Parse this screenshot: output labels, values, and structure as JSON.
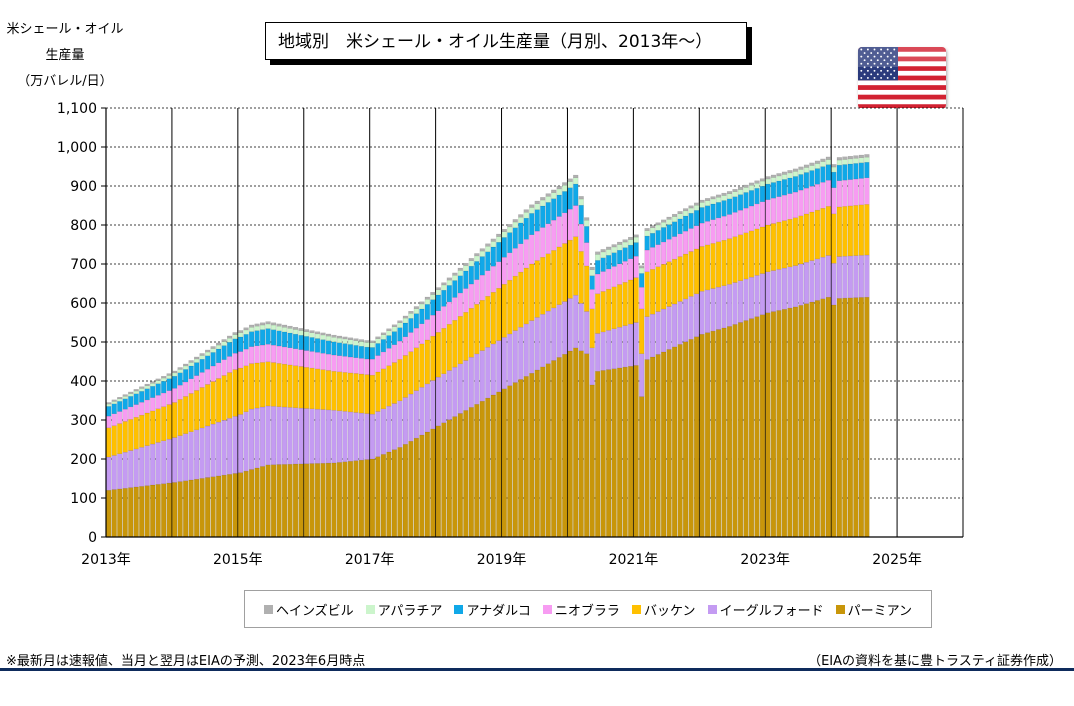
{
  "header": {
    "y_axis_title_lines": [
      "米シェール・オイル",
      "生産量",
      "（万バレル/日）"
    ],
    "title": "地域別　米シェール・オイル生産量（月別、2013年～）"
  },
  "footer": {
    "note_left": "※最新月は速報値、当月と翌月はEIAの予測、2023年6月時点",
    "note_right": "（EIAの資料を基に豊トラスティ証券作成）"
  },
  "colors": {
    "permian": "#C8960A",
    "eagle_ford": "#C49BF2",
    "bakken": "#FFC000",
    "niobrara": "#F79CF2",
    "anadarko": "#10A8E8",
    "appalachia": "#CCF5CC",
    "haynesville": "#B0B0B0",
    "grid": "#000000",
    "rule": "#0E2B5C"
  },
  "icons": {
    "flag": "us-flag-icon"
  },
  "chart_data": {
    "type": "bar",
    "stacked": true,
    "frequency": "monthly",
    "x_start": "2013-01",
    "x_end": "2025-12",
    "ylim": [
      0,
      1100
    ],
    "yticks": [
      0,
      100,
      200,
      300,
      400,
      500,
      600,
      700,
      800,
      900,
      1000,
      1100
    ],
    "ytick_labels": [
      "0",
      "100",
      "200",
      "300",
      "400",
      "500",
      "600",
      "700",
      "800",
      "900",
      "1,000",
      "1,100"
    ],
    "xtick_labels": [
      "2013年",
      "2015年",
      "2017年",
      "2019年",
      "2021年",
      "2023年",
      "2025年"
    ],
    "xtick_years": [
      2013,
      2015,
      2017,
      2019,
      2021,
      2023,
      2025
    ],
    "grid": true,
    "legend_position": "bottom",
    "keyframes_note": "values per series, read at year/month anchors; months between anchors are linearly interpolated",
    "series": [
      {
        "name": "パーミアン",
        "color_key": "permian",
        "anchors": [
          [
            "2013-01",
            120
          ],
          [
            "2014-01",
            140
          ],
          [
            "2015-01",
            165
          ],
          [
            "2015-06",
            185
          ],
          [
            "2016-06",
            190
          ],
          [
            "2017-01",
            200
          ],
          [
            "2017-06",
            230
          ],
          [
            "2018-01",
            285
          ],
          [
            "2019-01",
            380
          ],
          [
            "2019-06",
            420
          ],
          [
            "2020-02",
            485
          ],
          [
            "2020-04",
            470
          ],
          [
            "2020-05",
            390
          ],
          [
            "2020-06",
            425
          ],
          [
            "2021-01",
            440
          ],
          [
            "2021-02",
            360
          ],
          [
            "2021-03",
            455
          ],
          [
            "2022-01",
            520
          ],
          [
            "2022-06",
            540
          ],
          [
            "2023-01",
            575
          ],
          [
            "2023-06",
            590
          ],
          [
            "2023-12",
            615
          ],
          [
            "2024-01",
            595
          ],
          [
            "2024-02",
            612
          ],
          [
            "2024-07",
            615
          ]
        ]
      },
      {
        "name": "イーグルフォード",
        "color_key": "eagle_ford",
        "anchors": [
          [
            "2013-01",
            85
          ],
          [
            "2014-01",
            115
          ],
          [
            "2015-03",
            155
          ],
          [
            "2016-06",
            135
          ],
          [
            "2017-01",
            115
          ],
          [
            "2018-01",
            125
          ],
          [
            "2019-06",
            135
          ],
          [
            "2020-02",
            135
          ],
          [
            "2020-05",
            95
          ],
          [
            "2021-01",
            110
          ],
          [
            "2022-01",
            110
          ],
          [
            "2023-01",
            105
          ],
          [
            "2024-07",
            108
          ]
        ]
      },
      {
        "name": "バッケン",
        "color_key": "bakken",
        "anchors": [
          [
            "2013-01",
            75
          ],
          [
            "2014-01",
            90
          ],
          [
            "2014-12",
            120
          ],
          [
            "2016-06",
            100
          ],
          [
            "2017-01",
            100
          ],
          [
            "2018-01",
            115
          ],
          [
            "2019-06",
            145
          ],
          [
            "2020-02",
            150
          ],
          [
            "2020-05",
            100
          ],
          [
            "2021-01",
            115
          ],
          [
            "2022-01",
            115
          ],
          [
            "2023-01",
            120
          ],
          [
            "2024-07",
            130
          ]
        ]
      },
      {
        "name": "ニオブララ",
        "color_key": "niobrara",
        "anchors": [
          [
            "2013-01",
            30
          ],
          [
            "2015-06",
            45
          ],
          [
            "2016-12",
            40
          ],
          [
            "2018-01",
            55
          ],
          [
            "2019-06",
            75
          ],
          [
            "2020-02",
            80
          ],
          [
            "2020-05",
            50
          ],
          [
            "2021-01",
            55
          ],
          [
            "2022-01",
            60
          ],
          [
            "2023-01",
            65
          ],
          [
            "2024-07",
            68
          ]
        ]
      },
      {
        "name": "アナダルコ",
        "color_key": "anadarko",
        "anchors": [
          [
            "2013-01",
            25
          ],
          [
            "2015-06",
            40
          ],
          [
            "2017-01",
            30
          ],
          [
            "2018-06",
            45
          ],
          [
            "2019-06",
            55
          ],
          [
            "2020-02",
            55
          ],
          [
            "2020-05",
            35
          ],
          [
            "2021-01",
            35
          ],
          [
            "2022-01",
            40
          ],
          [
            "2023-01",
            40
          ],
          [
            "2024-07",
            40
          ]
        ]
      },
      {
        "name": "アパラチア",
        "color_key": "appalachia",
        "anchors": [
          [
            "2013-01",
            6
          ],
          [
            "2015-06",
            12
          ],
          [
            "2017-01",
            12
          ],
          [
            "2019-06",
            15
          ],
          [
            "2020-02",
            16
          ],
          [
            "2021-01",
            14
          ],
          [
            "2022-01",
            13
          ],
          [
            "2024-07",
            13
          ]
        ]
      },
      {
        "name": "ヘインズビル",
        "color_key": "haynesville",
        "anchors": [
          [
            "2013-01",
            4
          ],
          [
            "2015-06",
            6
          ],
          [
            "2017-01",
            5
          ],
          [
            "2019-06",
            7
          ],
          [
            "2020-02",
            7
          ],
          [
            "2021-01",
            6
          ],
          [
            "2022-01",
            6
          ],
          [
            "2024-07",
            7
          ]
        ]
      }
    ]
  }
}
